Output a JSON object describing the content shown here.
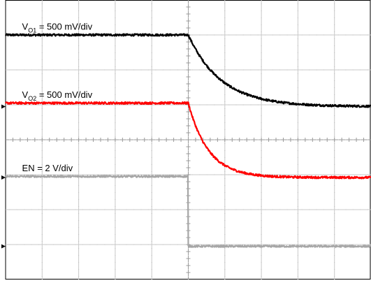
{
  "chart_data": {
    "type": "line",
    "title": "",
    "xlabel": "",
    "ylabel": "",
    "grid": true,
    "x_divisions": 10,
    "y_divisions": 8,
    "xlim": [
      0,
      10
    ],
    "ylim": [
      0,
      8
    ],
    "series": [
      {
        "name": "VO1",
        "color": "#000000",
        "level_before": 7.0,
        "level_after": 4.95,
        "step_time": 5.0,
        "tau": 0.9,
        "noise": 0.03,
        "shape": "exp"
      },
      {
        "name": "VO2",
        "color": "#ff0000",
        "level_before": 5.05,
        "level_after": 2.92,
        "step_time": 5.0,
        "tau": 0.55,
        "noise": 0.03,
        "shape": "exp"
      },
      {
        "name": "EN",
        "color": "#a6a6a6",
        "level_before": 2.95,
        "level_after": 0.95,
        "step_time": 5.0,
        "tau": 0,
        "noise": 0.025,
        "shape": "step"
      }
    ],
    "annotations": [
      {
        "id": "vo1",
        "prefix": "V",
        "sub": "O1",
        "suffix": " = 500 mV/div",
        "y": 7.15,
        "x": 0.45
      },
      {
        "id": "vo2",
        "prefix": "V",
        "sub": "O2",
        "suffix": " = 500 mV/div",
        "y": 5.2,
        "x": 0.45
      },
      {
        "id": "en",
        "prefix": "EN = 2 V/div",
        "sub": "",
        "suffix": "",
        "y": 3.1,
        "x": 0.45
      }
    ]
  }
}
